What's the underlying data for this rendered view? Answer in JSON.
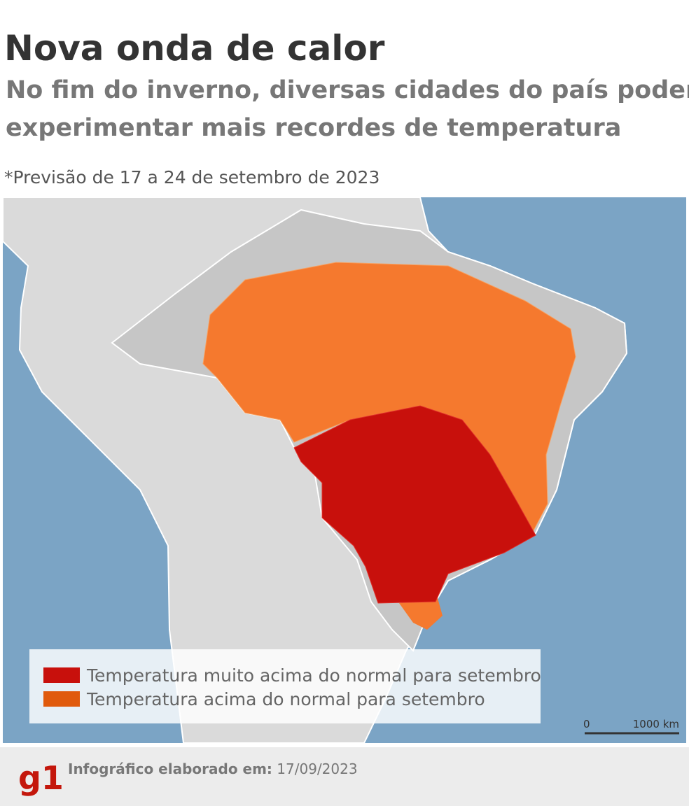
{
  "header": {
    "title": "Nova onda de calor",
    "subtitle_lines": [
      "No fim do inverno, diversas cidades do país podem",
      "experimentar mais recordes de temperatura"
    ],
    "note": "*Previsão de 17 a 24 de setembro de 2023"
  },
  "legend": {
    "entries": [
      {
        "label": "Temperatura muito acima do normal para setembro",
        "color": "#c8100c"
      },
      {
        "label": "Temperatura acima do normal para setembro",
        "color": "#e05a0c"
      }
    ]
  },
  "scale_bar": {
    "start_label": "0",
    "end_label": "1000 km"
  },
  "footer": {
    "logo": "g1",
    "credit_label": "Infográfico elaborado em:",
    "date": "17/09/2023"
  }
}
